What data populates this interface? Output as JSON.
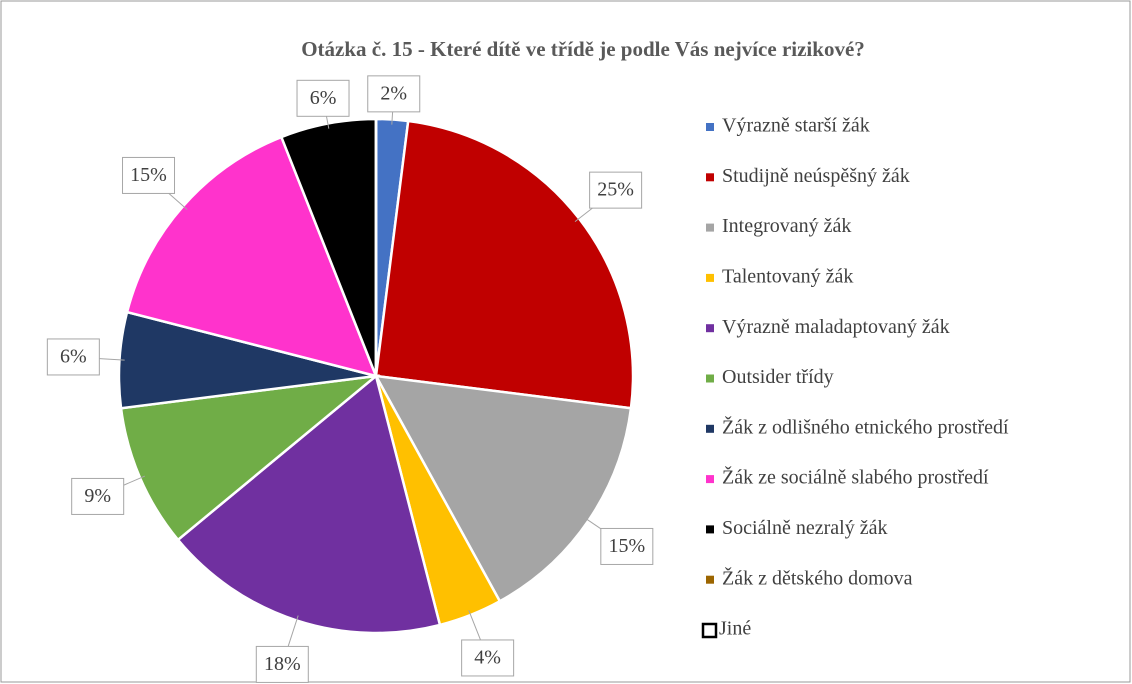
{
  "chart_data": {
    "type": "pie",
    "title": "Otázka č. 15 - Které dítě ve třídě je podle Vás nejvíce rizikové?",
    "categories": [
      "Výrazně starší žák",
      "Studijně neúspěšný žák",
      "Integrovaný žák",
      "Talentovaný žák",
      "Výrazně maladaptovaný žák",
      "Outsider třídy",
      "Žák z odlišného etnického prostředí",
      "Žák ze sociálně slabého prostředí",
      "Sociálně nezralý žák",
      "Žák z dětského domova",
      "Jiné"
    ],
    "values": [
      2,
      25,
      15,
      4,
      18,
      9,
      6,
      15,
      6,
      0,
      0
    ],
    "value_labels": [
      "2%",
      "25%",
      "15%",
      "4%",
      "18%",
      "9%",
      "6%",
      "15%",
      "6%",
      null,
      null
    ],
    "colors": [
      "#4472c4",
      "#c00000",
      "#a5a5a5",
      "#ffc000",
      "#7030a0",
      "#70ad47",
      "#1f3864",
      "#ff33cc",
      "#000000",
      "#9c6500",
      "#ffffff"
    ],
    "legend": "right"
  }
}
